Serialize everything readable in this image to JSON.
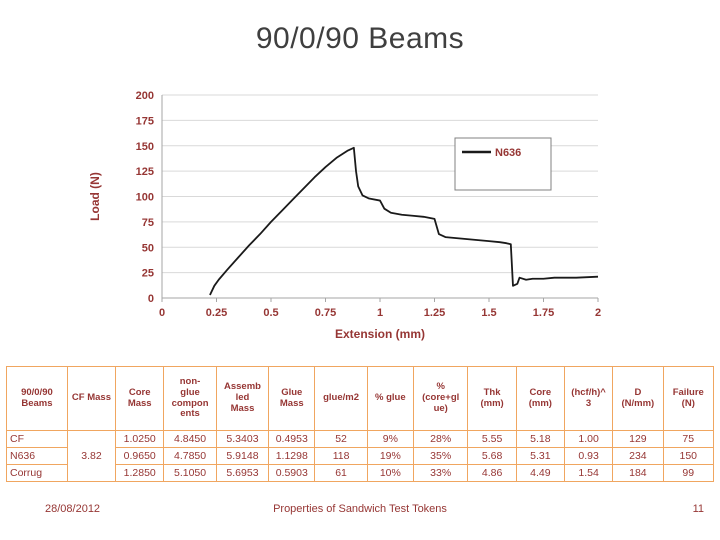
{
  "slide": {
    "title": "90/0/90 Beams",
    "footer": {
      "date": "28/08/2012",
      "center": "Properties of Sandwich Test Tokens",
      "page": "11"
    }
  },
  "chart_data": {
    "type": "line",
    "title": "",
    "xlabel": "Extension (mm)",
    "ylabel": "Load (N)",
    "xlim": [
      0,
      2
    ],
    "ylim": [
      0,
      200
    ],
    "xticks": [
      0,
      0.25,
      0.5,
      0.75,
      1,
      1.25,
      1.5,
      1.75,
      2
    ],
    "xtick_labels": [
      "0",
      "0.25",
      "0.5",
      "0.75",
      "1",
      "1.25",
      "1.5",
      "1.75",
      "2"
    ],
    "yticks": [
      0,
      25,
      50,
      75,
      100,
      125,
      150,
      175,
      200
    ],
    "grid": "horizontal",
    "legend": {
      "position": "right",
      "entries": [
        "N636"
      ]
    },
    "series": [
      {
        "name": "N636",
        "color": "#1a1a1a",
        "points": [
          [
            0.22,
            3
          ],
          [
            0.24,
            12
          ],
          [
            0.26,
            18
          ],
          [
            0.3,
            28
          ],
          [
            0.35,
            40
          ],
          [
            0.4,
            52
          ],
          [
            0.45,
            63
          ],
          [
            0.5,
            75
          ],
          [
            0.55,
            86
          ],
          [
            0.6,
            97
          ],
          [
            0.65,
            108
          ],
          [
            0.7,
            119
          ],
          [
            0.75,
            129
          ],
          [
            0.8,
            138
          ],
          [
            0.85,
            145
          ],
          [
            0.88,
            148
          ],
          [
            0.89,
            125
          ],
          [
            0.9,
            110
          ],
          [
            0.92,
            101
          ],
          [
            0.95,
            98
          ],
          [
            1.0,
            96
          ],
          [
            1.02,
            88
          ],
          [
            1.05,
            84
          ],
          [
            1.1,
            82
          ],
          [
            1.15,
            81
          ],
          [
            1.2,
            80
          ],
          [
            1.25,
            78
          ],
          [
            1.27,
            63
          ],
          [
            1.3,
            60
          ],
          [
            1.35,
            59
          ],
          [
            1.4,
            58
          ],
          [
            1.45,
            57
          ],
          [
            1.5,
            56
          ],
          [
            1.55,
            55
          ],
          [
            1.58,
            54
          ],
          [
            1.6,
            53
          ],
          [
            1.61,
            12
          ],
          [
            1.63,
            14
          ],
          [
            1.64,
            20
          ],
          [
            1.67,
            18
          ],
          [
            1.7,
            19
          ],
          [
            1.75,
            19
          ],
          [
            1.8,
            20
          ],
          [
            1.9,
            20
          ],
          [
            2.0,
            21
          ]
        ]
      }
    ]
  },
  "table": {
    "headers": [
      "90/0/90\nBeams",
      "CF Mass",
      "Core\nMass",
      "non-\nglue\ncompon\nents",
      "Assemb\nled\nMass",
      "Glue\nMass",
      "glue/m2",
      "% glue",
      "%\n(core+gl\nue)",
      "Thk\n(mm)",
      "Core\n(mm)",
      "(hcf/h)^\n3",
      "D\n(N/mm)",
      "Failure\n(N)"
    ],
    "row_labels": [
      "CF",
      "N636",
      "Corrug"
    ],
    "cf_mass": "3.82",
    "rows": [
      [
        "1.0250",
        "4.8450",
        "5.3403",
        "0.4953",
        "52",
        "9%",
        "28%",
        "5.55",
        "5.18",
        "1.00",
        "129",
        "75"
      ],
      [
        "0.9650",
        "4.7850",
        "5.9148",
        "1.1298",
        "118",
        "19%",
        "35%",
        "5.68",
        "5.31",
        "0.93",
        "234",
        "150"
      ],
      [
        "1.2850",
        "5.1050",
        "5.6953",
        "0.5903",
        "61",
        "10%",
        "33%",
        "4.86",
        "4.49",
        "1.54",
        "184",
        "99"
      ]
    ]
  },
  "colors": {
    "text_maroon": "#963634",
    "table_border": "#f0a660",
    "title_gray": "#3f3f3f",
    "gridline": "#d9d9d9",
    "axis": "#a6a6a6",
    "series_line": "#1a1a1a"
  }
}
